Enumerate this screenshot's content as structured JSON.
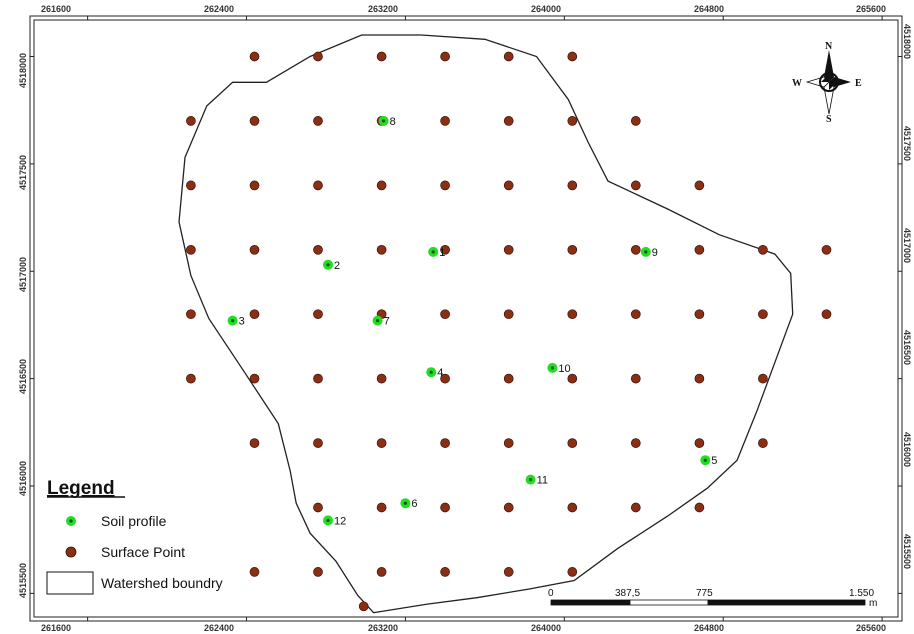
{
  "map": {
    "x_ticks": [
      "261600",
      "262400",
      "263200",
      "264000",
      "264800",
      "265600"
    ],
    "y_ticks": [
      "4518000",
      "4517500",
      "4517000",
      "4516500",
      "4516000",
      "4515500"
    ],
    "x_range": [
      261330,
      265680
    ],
    "y_range": [
      4515390,
      4518170
    ]
  },
  "north_arrow": {
    "n": "N",
    "s": "S",
    "e": "E",
    "w": "W",
    "icon": "compass-rose-icon"
  },
  "legend": {
    "title": "Legend",
    "items": [
      {
        "label": "Soil profile",
        "color": "#22dd22"
      },
      {
        "label": "Surface Point",
        "color": "#8b2f14"
      },
      {
        "label": "Watershed boundry",
        "color": "#ffffff"
      }
    ]
  },
  "scale_bar": {
    "labels": [
      "0",
      "387,5",
      "775",
      "1.550"
    ],
    "unit": "m"
  },
  "colors": {
    "soil_profile": "#22dd22",
    "surface_point": "#8b2f14",
    "boundary": "#222222"
  },
  "soil_profiles": [
    {
      "label": "1",
      "x": 263340,
      "y": 4517090
    },
    {
      "label": "2",
      "x": 262810,
      "y": 4517030
    },
    {
      "label": "3",
      "x": 262330,
      "y": 4516770
    },
    {
      "label": "4",
      "x": 263330,
      "y": 4516530
    },
    {
      "label": "5",
      "x": 264710,
      "y": 4516120
    },
    {
      "label": "6",
      "x": 263200,
      "y": 4515920
    },
    {
      "label": "7",
      "x": 263060,
      "y": 4516770
    },
    {
      "label": "8",
      "x": 263090,
      "y": 4517700
    },
    {
      "label": "9",
      "x": 264410,
      "y": 4517090
    },
    {
      "label": "10",
      "x": 263940,
      "y": 4516550
    },
    {
      "label": "11",
      "x": 263830,
      "y": 4516030
    },
    {
      "label": "12",
      "x": 262810,
      "y": 4515840
    }
  ],
  "surface_points": [
    [
      262440,
      4518000
    ],
    [
      262760,
      4518000
    ],
    [
      263080,
      4518000
    ],
    [
      263400,
      4518000
    ],
    [
      263720,
      4518000
    ],
    [
      264040,
      4518000
    ],
    [
      262120,
      4517700
    ],
    [
      262440,
      4517700
    ],
    [
      262760,
      4517700
    ],
    [
      263080,
      4517700
    ],
    [
      263400,
      4517700
    ],
    [
      263720,
      4517700
    ],
    [
      264040,
      4517700
    ],
    [
      264360,
      4517700
    ],
    [
      262120,
      4517400
    ],
    [
      262440,
      4517400
    ],
    [
      262760,
      4517400
    ],
    [
      263080,
      4517400
    ],
    [
      263400,
      4517400
    ],
    [
      263720,
      4517400
    ],
    [
      264040,
      4517400
    ],
    [
      264360,
      4517400
    ],
    [
      264680,
      4517400
    ],
    [
      262120,
      4517100
    ],
    [
      262440,
      4517100
    ],
    [
      262760,
      4517100
    ],
    [
      263080,
      4517100
    ],
    [
      263400,
      4517100
    ],
    [
      263720,
      4517100
    ],
    [
      264040,
      4517100
    ],
    [
      264360,
      4517100
    ],
    [
      264680,
      4517100
    ],
    [
      265000,
      4517100
    ],
    [
      265320,
      4517100
    ],
    [
      262120,
      4516800
    ],
    [
      262440,
      4516800
    ],
    [
      262760,
      4516800
    ],
    [
      263080,
      4516800
    ],
    [
      263400,
      4516800
    ],
    [
      263720,
      4516800
    ],
    [
      264040,
      4516800
    ],
    [
      264360,
      4516800
    ],
    [
      264680,
      4516800
    ],
    [
      265000,
      4516800
    ],
    [
      265320,
      4516800
    ],
    [
      262120,
      4516500
    ],
    [
      262440,
      4516500
    ],
    [
      262760,
      4516500
    ],
    [
      263080,
      4516500
    ],
    [
      263400,
      4516500
    ],
    [
      263720,
      4516500
    ],
    [
      264040,
      4516500
    ],
    [
      264360,
      4516500
    ],
    [
      264680,
      4516500
    ],
    [
      265000,
      4516500
    ],
    [
      262440,
      4516200
    ],
    [
      262760,
      4516200
    ],
    [
      263080,
      4516200
    ],
    [
      263400,
      4516200
    ],
    [
      263720,
      4516200
    ],
    [
      264040,
      4516200
    ],
    [
      264360,
      4516200
    ],
    [
      264680,
      4516200
    ],
    [
      265000,
      4516200
    ],
    [
      262760,
      4515900
    ],
    [
      263080,
      4515900
    ],
    [
      263400,
      4515900
    ],
    [
      263720,
      4515900
    ],
    [
      264040,
      4515900
    ],
    [
      264360,
      4515900
    ],
    [
      264680,
      4515900
    ],
    [
      262440,
      4515600
    ],
    [
      262760,
      4515600
    ],
    [
      263080,
      4515600
    ],
    [
      263400,
      4515600
    ],
    [
      263720,
      4515600
    ],
    [
      264040,
      4515600
    ],
    [
      262990,
      4515440
    ]
  ],
  "boundary": [
    [
      262330,
      4517880
    ],
    [
      262500,
      4517880
    ],
    [
      262720,
      4518000
    ],
    [
      262980,
      4518100
    ],
    [
      263280,
      4518100
    ],
    [
      263600,
      4518080
    ],
    [
      263860,
      4518000
    ],
    [
      264020,
      4517800
    ],
    [
      264120,
      4517600
    ],
    [
      264220,
      4517420
    ],
    [
      264520,
      4517290
    ],
    [
      264780,
      4517170
    ],
    [
      265060,
      4517080
    ],
    [
      265140,
      4516990
    ],
    [
      265150,
      4516800
    ],
    [
      265070,
      4516600
    ],
    [
      264970,
      4516350
    ],
    [
      264870,
      4516120
    ],
    [
      264720,
      4515990
    ],
    [
      264520,
      4515860
    ],
    [
      264270,
      4515710
    ],
    [
      264050,
      4515560
    ],
    [
      263820,
      4515520
    ],
    [
      263560,
      4515480
    ],
    [
      263310,
      4515450
    ],
    [
      263040,
      4515410
    ],
    [
      262960,
      4515490
    ],
    [
      262850,
      4515650
    ],
    [
      262720,
      4515780
    ],
    [
      262650,
      4515920
    ],
    [
      262620,
      4516070
    ],
    [
      262560,
      4516290
    ],
    [
      262390,
      4516530
    ],
    [
      262210,
      4516780
    ],
    [
      262120,
      4516980
    ],
    [
      262060,
      4517230
    ],
    [
      262090,
      4517530
    ],
    [
      262200,
      4517770
    ]
  ]
}
